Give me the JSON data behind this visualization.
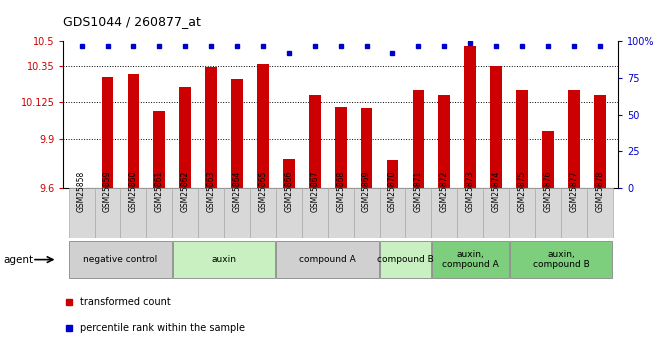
{
  "title": "GDS1044 / 260877_at",
  "samples": [
    "GSM25858",
    "GSM25859",
    "GSM25860",
    "GSM25861",
    "GSM25862",
    "GSM25863",
    "GSM25864",
    "GSM25865",
    "GSM25866",
    "GSM25867",
    "GSM25868",
    "GSM25869",
    "GSM25870",
    "GSM25871",
    "GSM25872",
    "GSM25873",
    "GSM25874",
    "GSM25875",
    "GSM25876",
    "GSM25877",
    "GSM25878"
  ],
  "bar_values": [
    9.6,
    10.28,
    10.3,
    10.07,
    10.22,
    10.34,
    10.27,
    10.36,
    9.78,
    10.17,
    10.1,
    10.09,
    9.77,
    10.2,
    10.17,
    10.47,
    10.35,
    10.2,
    9.95,
    10.2,
    10.17
  ],
  "percentile_values": [
    97,
    97,
    97,
    97,
    97,
    97,
    97,
    97,
    92,
    97,
    97,
    97,
    92,
    97,
    97,
    99,
    97,
    97,
    97,
    97,
    97
  ],
  "bar_color": "#cc0000",
  "dot_color": "#0000cc",
  "ymin": 9.6,
  "ymax": 10.5,
  "yticks_left": [
    9.6,
    9.9,
    10.125,
    10.35,
    10.5
  ],
  "ytick_labels_left": [
    "9.6",
    "9.9",
    "10.125",
    "10.35",
    "10.5"
  ],
  "yticks_right": [
    0,
    25,
    50,
    75,
    100
  ],
  "ytick_labels_right": [
    "0",
    "25",
    "50",
    "75",
    "100%"
  ],
  "grid_values": [
    9.9,
    10.125,
    10.35
  ],
  "groups": [
    {
      "label": "negative control",
      "start": 0,
      "end": 3,
      "color": "#d0d0d0"
    },
    {
      "label": "auxin",
      "start": 4,
      "end": 7,
      "color": "#c8f0c0"
    },
    {
      "label": "compound A",
      "start": 8,
      "end": 11,
      "color": "#d0d0d0"
    },
    {
      "label": "compound B",
      "start": 12,
      "end": 13,
      "color": "#c8f0c0"
    },
    {
      "label": "auxin,\ncompound A",
      "start": 14,
      "end": 16,
      "color": "#7dce7d"
    },
    {
      "label": "auxin,\ncompound B",
      "start": 17,
      "end": 20,
      "color": "#7dce7d"
    }
  ],
  "agent_label": "agent",
  "legend_red_label": "transformed count",
  "legend_blue_label": "percentile rank within the sample",
  "tick_bg_color": "#d8d8d8"
}
